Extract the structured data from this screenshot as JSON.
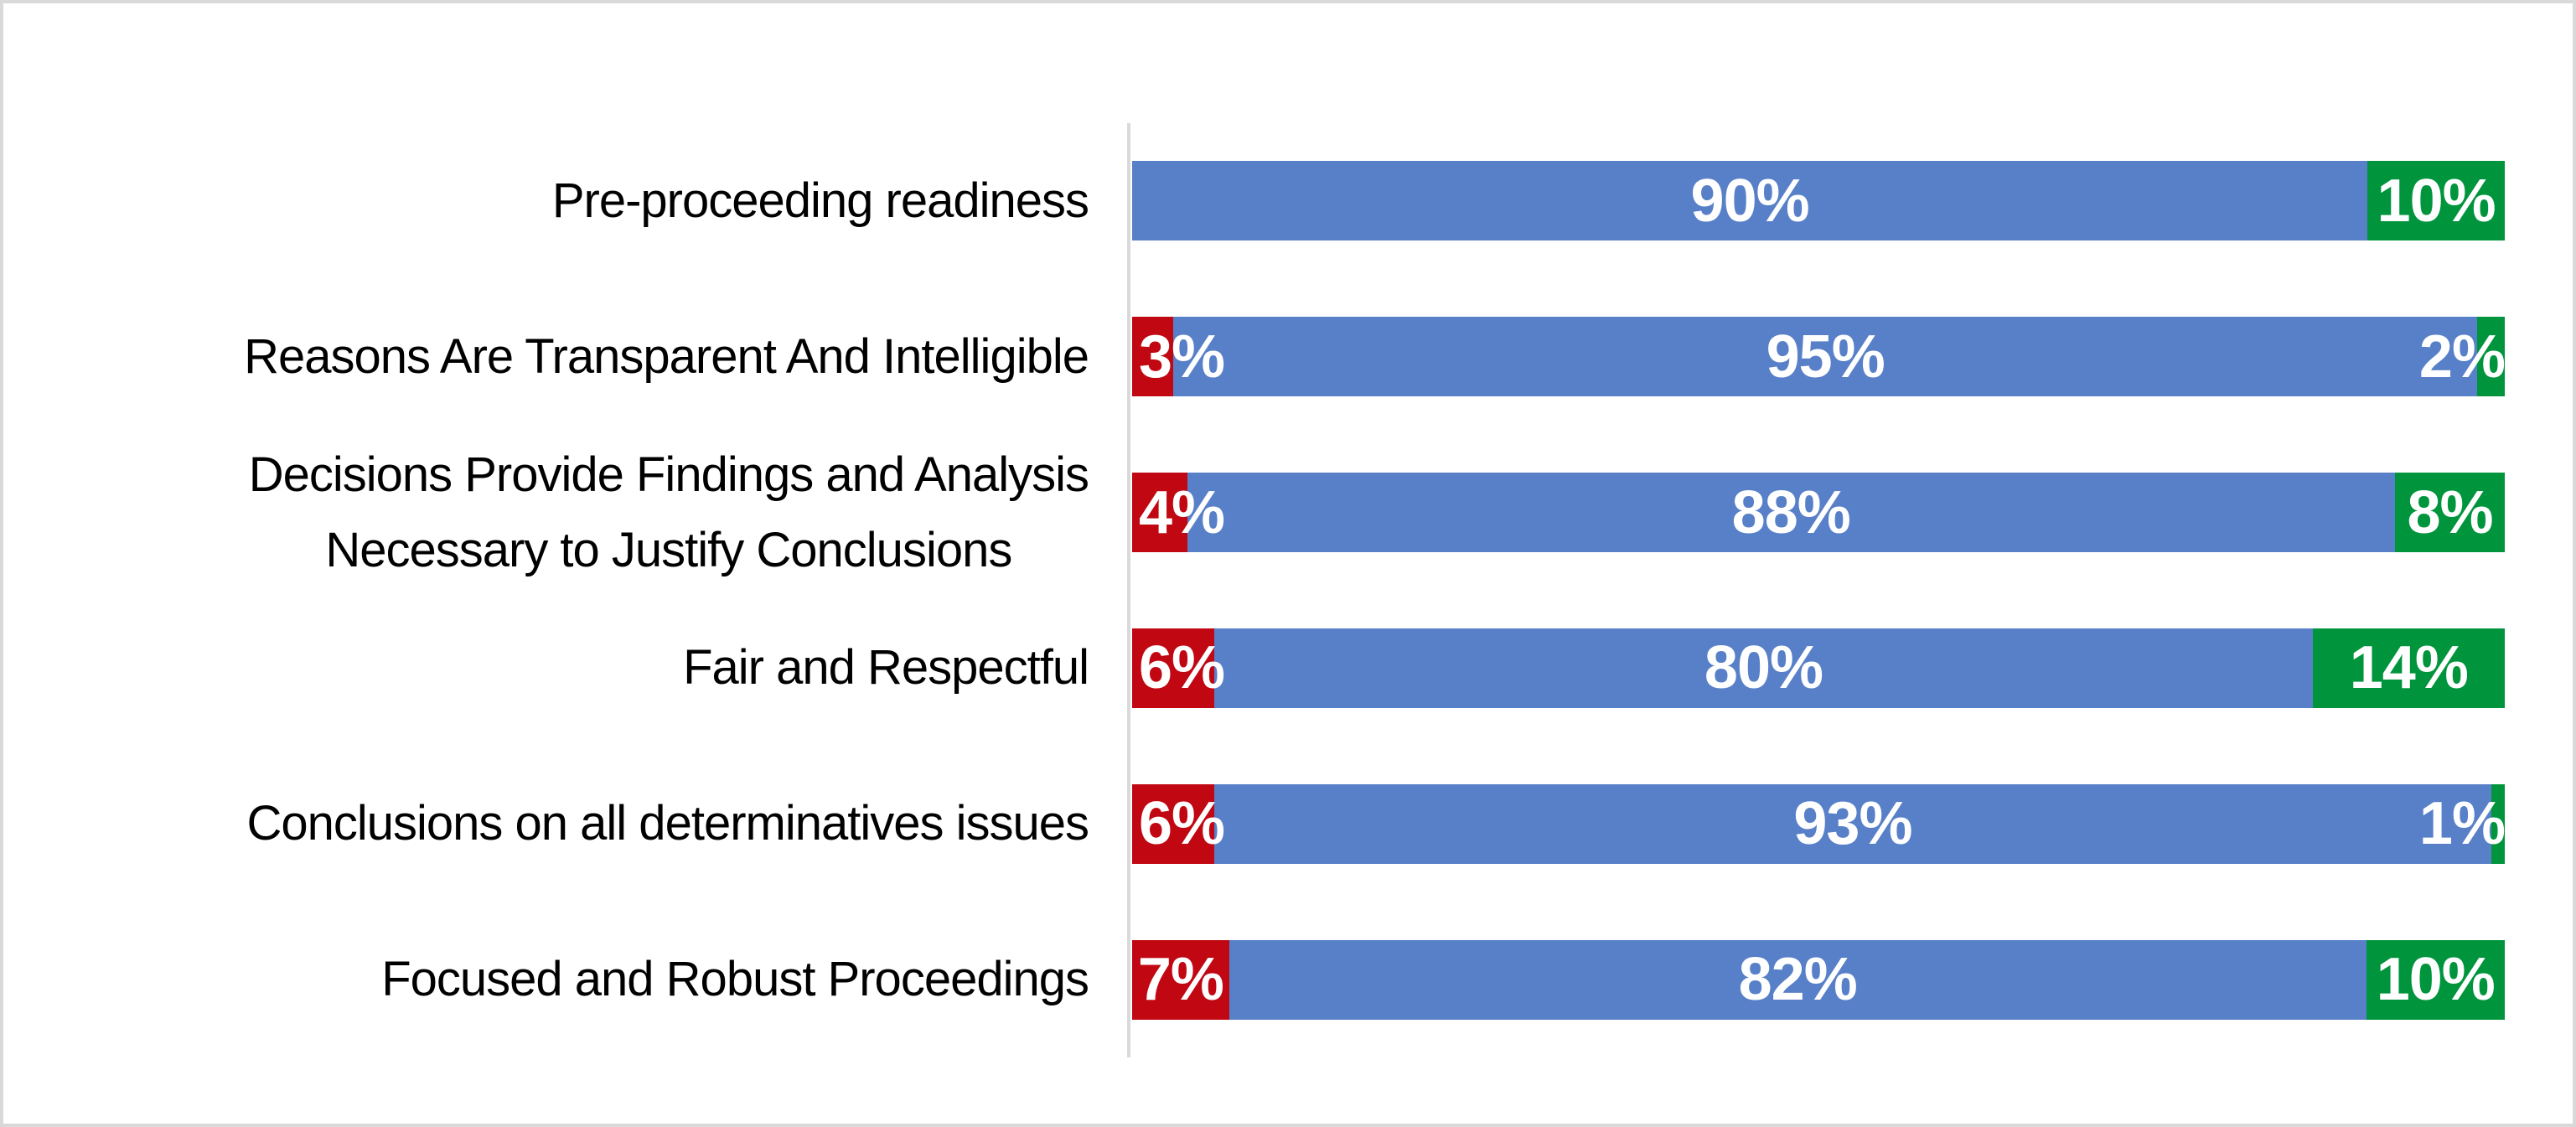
{
  "style": {
    "background": "#FFFFFF",
    "frame_border_color": "#D9D9D9",
    "axis_line_color": "#D9D9D9",
    "category_label_color": "#000000",
    "data_label_color": "#FFFFFF",
    "red": "#C00712",
    "blue": "#5880C8",
    "green": "#00953C"
  },
  "chart_data": {
    "type": "bar",
    "subtype": "horizontal-stacked-100",
    "title": "",
    "xlabel": "",
    "ylabel": "",
    "xlim": [
      0,
      100
    ],
    "grid": false,
    "legend": false,
    "categories": [
      "Pre-proceeding readiness",
      "Reasons Are Transparent And Intelligible",
      "Decisions Provide Findings and Analysis Necessary to Justify Conclusions",
      "Fair and Respectful",
      "Conclusions on all determinatives issues",
      "Focused and Robust Proceedings"
    ],
    "category_display_lines": [
      [
        "Pre-proceeding readiness"
      ],
      [
        "Reasons Are Transparent And Intelligible"
      ],
      [
        "Decisions Provide Findings and Analysis",
        "Necessary to Justify Conclusions"
      ],
      [
        "Fair and Respectful"
      ],
      [
        "Conclusions on all determinatives issues"
      ],
      [
        "Focused and Robust Proceedings"
      ]
    ],
    "series": [
      {
        "name": "red",
        "color": "#C00712",
        "values": [
          0,
          3,
          4,
          6,
          6,
          7
        ],
        "data_labels": [
          "",
          "3%",
          "4%",
          "6%",
          "6%",
          "7%"
        ]
      },
      {
        "name": "blue",
        "color": "#5880C8",
        "values": [
          90,
          95,
          88,
          80,
          93,
          82
        ],
        "data_labels": [
          "90%",
          "95%",
          "88%",
          "80%",
          "93%",
          "82%"
        ]
      },
      {
        "name": "green",
        "color": "#00953C",
        "values": [
          10,
          2,
          8,
          14,
          1,
          10
        ],
        "data_labels": [
          "10%",
          "2%",
          "8%",
          "14%",
          "1%",
          "10%"
        ]
      }
    ]
  }
}
